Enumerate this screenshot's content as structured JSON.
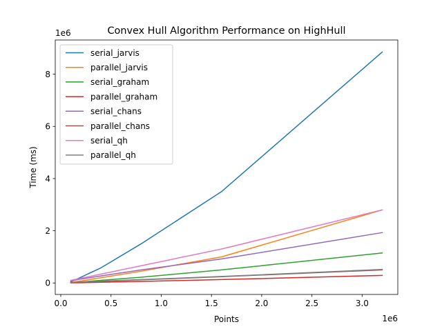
{
  "chart_data": {
    "type": "line",
    "title": "Convex Hull Algorithm Performance on HighHull",
    "xlabel": "Points",
    "ylabel": "Time (ms)",
    "x_offset_label": "1e6",
    "y_offset_label": "1e6",
    "x_scale_factor": 1000000,
    "y_scale_factor": 1000000,
    "xlim": [
      -0.055,
      3.355
    ],
    "ylim": [
      -0.44,
      9.31
    ],
    "x_ticks": [
      0.0,
      0.5,
      1.0,
      1.5,
      2.0,
      2.5,
      3.0
    ],
    "x_tick_labels": [
      "0.0",
      "0.5",
      "1.0",
      "1.5",
      "2.0",
      "2.5",
      "3.0"
    ],
    "y_ticks": [
      0,
      2,
      4,
      6,
      8
    ],
    "y_tick_labels": [
      "0",
      "2",
      "4",
      "6",
      "8"
    ],
    "grid": false,
    "legend_position": "top-left",
    "x": [
      0.1,
      0.2,
      0.4,
      0.8,
      1.6,
      3.2
    ],
    "series": [
      {
        "name": "serial_jarvis",
        "color": "#1f77b4",
        "values": [
          0.05,
          0.22,
          0.58,
          1.5,
          3.5,
          8.85
        ]
      },
      {
        "name": "parallel_jarvis",
        "color": "#ff7f0e",
        "values": [
          0.02,
          0.08,
          0.2,
          0.45,
          1.0,
          2.8
        ]
      },
      {
        "name": "serial_graham",
        "color": "#2ca02c",
        "values": [
          0.01,
          0.04,
          0.1,
          0.22,
          0.5,
          1.15
        ]
      },
      {
        "name": "parallel_graham",
        "color": "#d62728",
        "values": [
          0.005,
          0.01,
          0.03,
          0.06,
          0.13,
          0.29
        ]
      },
      {
        "name": "serial_chans",
        "color": "#9467bd",
        "values": [
          0.08,
          0.15,
          0.27,
          0.5,
          0.92,
          1.93
        ]
      },
      {
        "name": "parallel_chans",
        "color": "#8c564b",
        "values": [
          0.015,
          0.03,
          0.06,
          0.12,
          0.24,
          0.5
        ]
      },
      {
        "name": "serial_qh",
        "color": "#e377c2",
        "values": [
          0.1,
          0.18,
          0.34,
          0.66,
          1.3,
          2.8
        ]
      },
      {
        "name": "parallel_qh",
        "color": "#7f7f7f",
        "values": [
          0.02,
          0.04,
          0.07,
          0.13,
          0.25,
          0.52
        ]
      }
    ]
  }
}
